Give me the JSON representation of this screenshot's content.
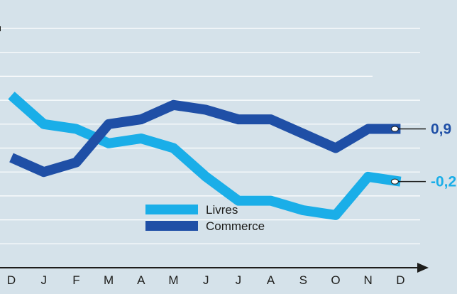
{
  "chart_data": {
    "type": "line",
    "title": "",
    "xlabel": "",
    "ylabel": "",
    "categories": [
      "D",
      "J",
      "F",
      "M",
      "A",
      "M",
      "J",
      "J",
      "A",
      "S",
      "O",
      "N",
      "D"
    ],
    "ylim": [
      -2.0,
      3.0
    ],
    "grid": true,
    "legend_placement": "bottom-center",
    "series": [
      {
        "name": "Livres",
        "color": "#1aaee8",
        "values": [
          1.6,
          1.0,
          0.9,
          0.6,
          0.7,
          0.5,
          -0.1,
          -0.6,
          -0.6,
          -0.8,
          -0.9,
          -0.1,
          -0.2
        ],
        "end_label": "-0,2",
        "marker": "white-dot"
      },
      {
        "name": "Commerce",
        "color": "#1f4fa6",
        "values": [
          0.3,
          0.0,
          0.2,
          1.0,
          1.1,
          1.4,
          1.3,
          1.1,
          1.1,
          0.8,
          0.5,
          0.9,
          0.9
        ],
        "end_label": "0,9",
        "marker": "white-dot"
      }
    ]
  }
}
